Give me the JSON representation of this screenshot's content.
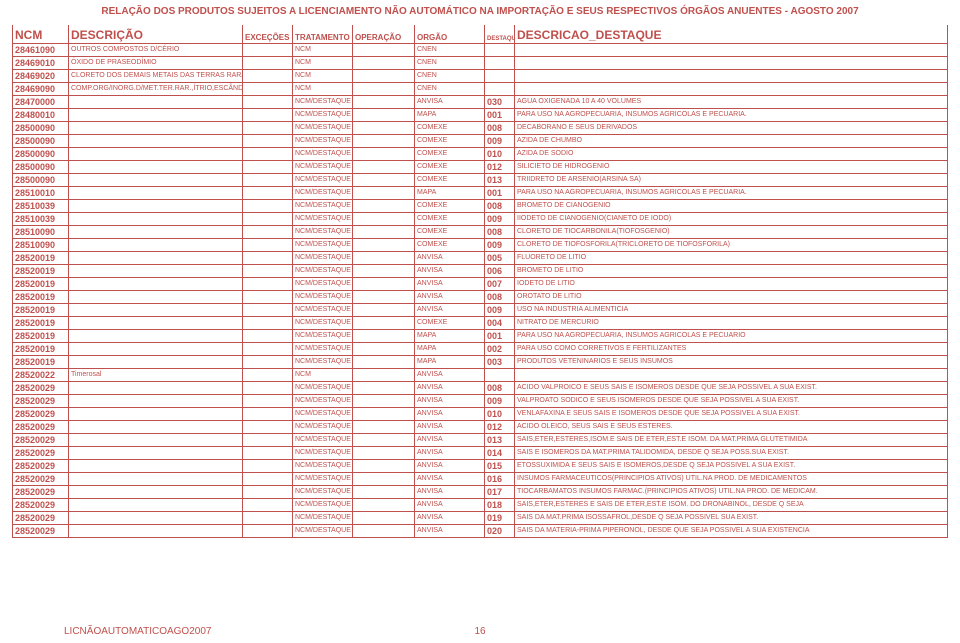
{
  "title": "RELAÇÃO DOS PRODUTOS SUJEITOS A LICENCIAMENTO NÃO AUTOMÁTICO NA IMPORTAÇÃO E SEUS RESPECTIVOS ÓRGÃOS ANUENTES - AGOSTO 2007",
  "columns": [
    "NCM",
    "DESCRIÇÃO",
    "EXCEÇÕES",
    "TRATAMENTO",
    "OPERAÇÃO",
    "ORGÃO",
    "DESTAQUE",
    "DESCRICAO_DESTAQUE"
  ],
  "rows": [
    {
      "ncm": "28461090",
      "desc": "OUTROS COMPOSTOS D/CÉRIO",
      "exc": "",
      "trat": "NCM",
      "oper": "",
      "orgao": "CNEN",
      "dest": "",
      "ddesc": ""
    },
    {
      "ncm": "28469010",
      "desc": "ÓXIDO DE PRASEODÍMIO",
      "exc": "",
      "trat": "NCM",
      "oper": "",
      "orgao": "CNEN",
      "dest": "",
      "ddesc": ""
    },
    {
      "ncm": "28469020",
      "desc": "CLORETO DOS DEMAIS METAIS DAS TERRAS RARAS",
      "exc": "",
      "trat": "NCM",
      "oper": "",
      "orgao": "CNEN",
      "dest": "",
      "ddesc": ""
    },
    {
      "ncm": "28469090",
      "desc": "COMP.ORG/INORG.D/MET.TER.RAR.,ÍTRIO,ESCÂNDI",
      "exc": "",
      "trat": "NCM",
      "oper": "",
      "orgao": "CNEN",
      "dest": "",
      "ddesc": ""
    },
    {
      "ncm": "28470000",
      "desc": "",
      "exc": "",
      "trat": "NCM/DESTAQUE",
      "oper": "",
      "orgao": "ANVISA",
      "dest": "030",
      "ddesc": "AGUA OXIGENADA 10 A 40 VOLUMES"
    },
    {
      "ncm": "28480010",
      "desc": "",
      "exc": "",
      "trat": "NCM/DESTAQUE",
      "oper": "",
      "orgao": "MAPA",
      "dest": "001",
      "ddesc": "PARA USO NA AGROPECUARIA, INSUMOS AGRICOLAS E PECUARIA."
    },
    {
      "ncm": "28500090",
      "desc": "",
      "exc": "",
      "trat": "NCM/DESTAQUE",
      "oper": "",
      "orgao": "COMEXE",
      "dest": "008",
      "ddesc": "DECABORANO E SEUS DERIVADOS"
    },
    {
      "ncm": "28500090",
      "desc": "",
      "exc": "",
      "trat": "NCM/DESTAQUE",
      "oper": "",
      "orgao": "COMEXE",
      "dest": "009",
      "ddesc": "AZIDA DE CHUMBO"
    },
    {
      "ncm": "28500090",
      "desc": "",
      "exc": "",
      "trat": "NCM/DESTAQUE",
      "oper": "",
      "orgao": "COMEXE",
      "dest": "010",
      "ddesc": "AZIDA DE SODIO"
    },
    {
      "ncm": "28500090",
      "desc": "",
      "exc": "",
      "trat": "NCM/DESTAQUE",
      "oper": "",
      "orgao": "COMEXE",
      "dest": "012",
      "ddesc": "SILICIETO DE HIDROGENIO"
    },
    {
      "ncm": "28500090",
      "desc": "",
      "exc": "",
      "trat": "NCM/DESTAQUE",
      "oper": "",
      "orgao": "COMEXE",
      "dest": "013",
      "ddesc": "TRIIDRETO DE ARSENIO(ARSINA SA)"
    },
    {
      "ncm": "28510010",
      "desc": "",
      "exc": "",
      "trat": "NCM/DESTAQUE",
      "oper": "",
      "orgao": "MAPA",
      "dest": "001",
      "ddesc": "PARA USO NA AGROPECUARIA, INSUMOS AGRICOLAS E PECUARIA."
    },
    {
      "ncm": "28510039",
      "desc": "",
      "exc": "",
      "trat": "NCM/DESTAQUE",
      "oper": "",
      "orgao": "COMEXE",
      "dest": "008",
      "ddesc": "BROMETO DE CIANOGENIO"
    },
    {
      "ncm": "28510039",
      "desc": "",
      "exc": "",
      "trat": "NCM/DESTAQUE",
      "oper": "",
      "orgao": "COMEXE",
      "dest": "009",
      "ddesc": "IIODETO DE CIANOGENIO(CIANETO DE IODO)"
    },
    {
      "ncm": "28510090",
      "desc": "",
      "exc": "",
      "trat": "NCM/DESTAQUE",
      "oper": "",
      "orgao": "COMEXE",
      "dest": "008",
      "ddesc": "CLORETO DE TIOCARBONILA(TIOFOSGENIO)"
    },
    {
      "ncm": "28510090",
      "desc": "",
      "exc": "",
      "trat": "NCM/DESTAQUE",
      "oper": "",
      "orgao": "COMEXE",
      "dest": "009",
      "ddesc": "CLORETO DE TIOFOSFORILA(TRICLORETO DE TIOFOSFORILA)"
    },
    {
      "ncm": "28520019",
      "desc": "",
      "exc": "",
      "trat": "NCM/DESTAQUE",
      "oper": "",
      "orgao": "ANVISA",
      "dest": "005",
      "ddesc": "FLUORETO DE LITIO"
    },
    {
      "ncm": "28520019",
      "desc": "",
      "exc": "",
      "trat": "NCM/DESTAQUE",
      "oper": "",
      "orgao": "ANVISA",
      "dest": "006",
      "ddesc": "BROMETO DE LITIO"
    },
    {
      "ncm": "28520019",
      "desc": "",
      "exc": "",
      "trat": "NCM/DESTAQUE",
      "oper": "",
      "orgao": "ANVISA",
      "dest": "007",
      "ddesc": "IODETO DE LITIO"
    },
    {
      "ncm": "28520019",
      "desc": "",
      "exc": "",
      "trat": "NCM/DESTAQUE",
      "oper": "",
      "orgao": "ANVISA",
      "dest": "008",
      "ddesc": "OROTATO DE LITIO"
    },
    {
      "ncm": "28520019",
      "desc": "",
      "exc": "",
      "trat": "NCM/DESTAQUE",
      "oper": "",
      "orgao": "ANVISA",
      "dest": "009",
      "ddesc": "USO NA INDUSTRIA ALIMENTICIA"
    },
    {
      "ncm": "28520019",
      "desc": "",
      "exc": "",
      "trat": "NCM/DESTAQUE",
      "oper": "",
      "orgao": "COMEXE",
      "dest": "004",
      "ddesc": "NITRATO DE MERCURIO"
    },
    {
      "ncm": "28520019",
      "desc": "",
      "exc": "",
      "trat": "NCM/DESTAQUE",
      "oper": "",
      "orgao": "MAPA",
      "dest": "001",
      "ddesc": "PARA USO NA AGROPECUARIA, INSUMOS AGRICOLAS E PECUARIO"
    },
    {
      "ncm": "28520019",
      "desc": "",
      "exc": "",
      "trat": "NCM/DESTAQUE",
      "oper": "",
      "orgao": "MAPA",
      "dest": "002",
      "ddesc": "PARA USO COMO CORRETIVOS E FERTILIZANTES"
    },
    {
      "ncm": "28520019",
      "desc": "",
      "exc": "",
      "trat": "NCM/DESTAQUE",
      "oper": "",
      "orgao": "MAPA",
      "dest": "003",
      "ddesc": "PRODUTOS VETENINARIOS E SEUS INSUMOS"
    },
    {
      "ncm": "28520022",
      "desc": "Timerosal",
      "exc": "",
      "trat": "NCM",
      "oper": "",
      "orgao": "ANVISA",
      "dest": "",
      "ddesc": ""
    },
    {
      "ncm": "28520029",
      "desc": "",
      "exc": "",
      "trat": "NCM/DESTAQUE",
      "oper": "",
      "orgao": "ANVISA",
      "dest": "008",
      "ddesc": "ACIDO VALPROICO E SEUS SAIS E ISOMEROS DESDE QUE SEJA POSSIVEL A SUA EXIST."
    },
    {
      "ncm": "28520029",
      "desc": "",
      "exc": "",
      "trat": "NCM/DESTAQUE",
      "oper": "",
      "orgao": "ANVISA",
      "dest": "009",
      "ddesc": "VALPROATO SODICO E SEUS ISOMEROS DESDE QUE SEJA POSSIVEL A SUA EXIST."
    },
    {
      "ncm": "28520029",
      "desc": "",
      "exc": "",
      "trat": "NCM/DESTAQUE",
      "oper": "",
      "orgao": "ANVISA",
      "dest": "010",
      "ddesc": "VENLAFAXINA E SEUS SAIS E ISOMEROS DESDE QUE SEJA POSSIVEL A SUA EXIST."
    },
    {
      "ncm": "28520029",
      "desc": "",
      "exc": "",
      "trat": "NCM/DESTAQUE",
      "oper": "",
      "orgao": "ANVISA",
      "dest": "012",
      "ddesc": "ACIDO OLEICO, SEUS SAIS E SEUS ESTERES."
    },
    {
      "ncm": "28520029",
      "desc": "",
      "exc": "",
      "trat": "NCM/DESTAQUE",
      "oper": "",
      "orgao": "ANVISA",
      "dest": "013",
      "ddesc": "SAIS,ETER,ESTERES,ISOM.E SAIS DE ETER,EST.E ISOM. DA MAT.PRIMA GLUTETIMIDA"
    },
    {
      "ncm": "28520029",
      "desc": "",
      "exc": "",
      "trat": "NCM/DESTAQUE",
      "oper": "",
      "orgao": "ANVISA",
      "dest": "014",
      "ddesc": "SAIS E ISOMEROS DA MAT.PRIMA TALIDOMIDA, DESDE Q SEJA POSS.SUA EXIST."
    },
    {
      "ncm": "28520029",
      "desc": "",
      "exc": "",
      "trat": "NCM/DESTAQUE",
      "oper": "",
      "orgao": "ANVISA",
      "dest": "015",
      "ddesc": "ETOSSUXIMIDA E SEUS SAIS E ISOMEROS,DESDE Q SEJA POSSIVEL A SUA EXIST."
    },
    {
      "ncm": "28520029",
      "desc": "",
      "exc": "",
      "trat": "NCM/DESTAQUE",
      "oper": "",
      "orgao": "ANVISA",
      "dest": "016",
      "ddesc": "INSUMOS FARMACEUTICOS(PRINCIPIOS ATIVOS) UTIL.NA PROD. DE MEDICAMENTOS"
    },
    {
      "ncm": "28520029",
      "desc": "",
      "exc": "",
      "trat": "NCM/DESTAQUE",
      "oper": "",
      "orgao": "ANVISA",
      "dest": "017",
      "ddesc": "TIOCARBAMATOS INSUMOS FARMAC.(PRINCIPIOS ATIVOS) UTIL.NA PROD. DE MEDICAM."
    },
    {
      "ncm": "28520029",
      "desc": "",
      "exc": "",
      "trat": "NCM/DESTAQUE",
      "oper": "",
      "orgao": "ANVISA",
      "dest": "018",
      "ddesc": "SAIS,ETER,ESTERES E SAIS DE ETER,EST.E ISOM. DO DRONABINOL, DESDE Q SEJA"
    },
    {
      "ncm": "28520029",
      "desc": "",
      "exc": "",
      "trat": "NCM/DESTAQUE",
      "oper": "",
      "orgao": "ANVISA",
      "dest": "019",
      "ddesc": "SAIS DA MAT.PRIMA ISOSSAFROL,DESDE Q SEJA POSSIVEL SUA EXIST."
    },
    {
      "ncm": "28520029",
      "desc": "",
      "exc": "",
      "trat": "NCM/DESTAQUE",
      "oper": "",
      "orgao": "ANVISA",
      "dest": "020",
      "ddesc": "SAIS DA MATERIA-PRIMA PIPERONOL, DESDE QUE SEJA POSSIVEL A SUA EXISTENCIA"
    }
  ],
  "footer": {
    "name": "LICNÃOAUTOMATICOAGO2007",
    "page": "16"
  }
}
